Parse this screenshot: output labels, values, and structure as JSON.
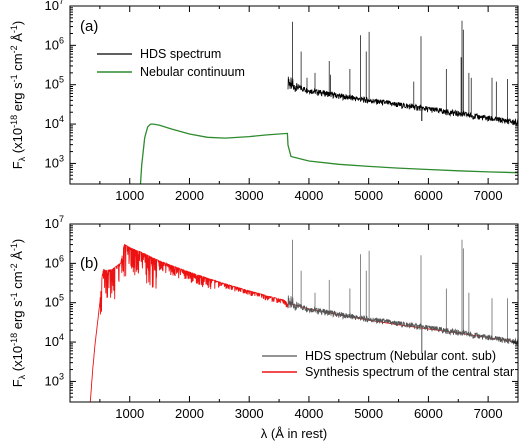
{
  "chart_data": [
    {
      "type": "line",
      "panel_label": "(a)",
      "ylabel": "F_λ (x10^-18 erg s^-1 cm^-2 Å^-1)",
      "ylabel_parts": {
        "main": "F",
        "sub": "λ",
        "a": " (x10",
        "e1": "-18",
        "b": " erg s",
        "e2": "-1",
        "c": " cm",
        "e3": "-2",
        "d": " Å",
        "e4": "-1",
        "e": ")"
      },
      "xlim": [
        0,
        7500
      ],
      "ylim": [
        300,
        10000000
      ],
      "yscale": "log",
      "x_ticks": [
        "1000",
        "2000",
        "3000",
        "4000",
        "5000",
        "6000",
        "7000"
      ],
      "x_tick_values": [
        1000,
        2000,
        3000,
        4000,
        5000,
        6000,
        7000
      ],
      "y_ticks": [
        {
          "value": 1000,
          "base": "10",
          "exp": "3"
        },
        {
          "value": 10000,
          "base": "10",
          "exp": "4"
        },
        {
          "value": 100000,
          "base": "10",
          "exp": "5"
        },
        {
          "value": 1000000,
          "base": "10",
          "exp": "6"
        },
        {
          "value": 10000000,
          "base": "10",
          "exp": "7"
        }
      ],
      "legend": {
        "position": "top-left"
      },
      "series": [
        {
          "name": "HDS spectrum",
          "color": "#000000",
          "continuum": {
            "x": [
              3650,
              4000,
              4500,
              5000,
              5500,
              6000,
              6500,
              7000,
              7500
            ],
            "y": [
              100000,
              72000,
              52000,
              40000,
              31000,
              24000,
              18500,
              14000,
              11000
            ]
          },
          "emission_lines": [
            {
              "x": 3727,
              "y": 4000000
            },
            {
              "x": 3869,
              "y": 700000
            },
            {
              "x": 3968,
              "y": 150000
            },
            {
              "x": 4101,
              "y": 200000
            },
            {
              "x": 4340,
              "y": 400000
            },
            {
              "x": 4363,
              "y": 180000
            },
            {
              "x": 4686,
              "y": 250000
            },
            {
              "x": 4861,
              "y": 1800000
            },
            {
              "x": 4959,
              "y": 700000
            },
            {
              "x": 5007,
              "y": 2200000
            },
            {
              "x": 5755,
              "y": 120000
            },
            {
              "x": 5876,
              "y": 1700000
            },
            {
              "x": 6300,
              "y": 250000
            },
            {
              "x": 6548,
              "y": 500000
            },
            {
              "x": 6563,
              "y": 4200000
            },
            {
              "x": 6584,
              "y": 2500000
            },
            {
              "x": 6678,
              "y": 200000
            },
            {
              "x": 6716,
              "y": 150000
            },
            {
              "x": 7065,
              "y": 150000
            },
            {
              "x": 7136,
              "y": 120000
            },
            {
              "x": 7325,
              "y": 140000
            }
          ],
          "absorption_lines": [
            {
              "x": 5890,
              "y": 12000
            }
          ]
        },
        {
          "name": "Nebular continuum",
          "color": "#2e8b2e",
          "x": [
            1180,
            1200,
            1250,
            1300,
            1350,
            1400,
            1500,
            1700,
            2000,
            2300,
            2600,
            3000,
            3300,
            3640,
            3650,
            3700,
            4000,
            4500,
            5000,
            5500,
            6000,
            6500,
            7000,
            7500
          ],
          "y": [
            300,
            900,
            4500,
            8500,
            10000,
            10000,
            9300,
            7500,
            5600,
            4600,
            4400,
            4800,
            5300,
            5800,
            2900,
            1500,
            1150,
            950,
            840,
            760,
            700,
            650,
            610,
            580
          ]
        }
      ]
    },
    {
      "type": "line",
      "panel_label": "(b)",
      "ylabel": "F_λ (x10^-18 erg s^-1 cm^-2 Å^-1)",
      "ylabel_parts": {
        "main": "F",
        "sub": "λ",
        "a": " (x10",
        "e1": "-18",
        "b": " erg s",
        "e2": "-1",
        "c": " cm",
        "e3": "-2",
        "d": " Å",
        "e4": "-1",
        "e": ")"
      },
      "xlabel": "λ (Å in rest)",
      "xlim": [
        0,
        7500
      ],
      "ylim": [
        300,
        10000000
      ],
      "yscale": "log",
      "x_ticks": [
        "1000",
        "2000",
        "3000",
        "4000",
        "5000",
        "6000",
        "7000"
      ],
      "x_tick_values": [
        1000,
        2000,
        3000,
        4000,
        5000,
        6000,
        7000
      ],
      "y_ticks": [
        {
          "value": 1000,
          "base": "10",
          "exp": "3"
        },
        {
          "value": 10000,
          "base": "10",
          "exp": "4"
        },
        {
          "value": 100000,
          "base": "10",
          "exp": "5"
        },
        {
          "value": 1000000,
          "base": "10",
          "exp": "6"
        },
        {
          "value": 10000000,
          "base": "10",
          "exp": "7"
        }
      ],
      "legend": {
        "position": "bottom-center"
      },
      "series": [
        {
          "name": "HDS spectrum (Nebular cont. sub)",
          "color": "#555555",
          "continuum": {
            "x": [
              3650,
              4000,
              4500,
              5000,
              5500,
              6000,
              6500,
              7000,
              7500
            ],
            "y": [
              95000,
              70000,
              50000,
              38000,
              29500,
              23000,
              17500,
              13000,
              10000
            ]
          },
          "emission_lines": [
            {
              "x": 3727,
              "y": 4000000
            },
            {
              "x": 3869,
              "y": 650000
            },
            {
              "x": 4101,
              "y": 180000
            },
            {
              "x": 4340,
              "y": 380000
            },
            {
              "x": 4686,
              "y": 230000
            },
            {
              "x": 4861,
              "y": 1700000
            },
            {
              "x": 4959,
              "y": 650000
            },
            {
              "x": 5007,
              "y": 2100000
            },
            {
              "x": 5876,
              "y": 1600000
            },
            {
              "x": 6300,
              "y": 230000
            },
            {
              "x": 6563,
              "y": 4000000
            },
            {
              "x": 6584,
              "y": 2400000
            },
            {
              "x": 6678,
              "y": 180000
            },
            {
              "x": 7065,
              "y": 130000
            },
            {
              "x": 7325,
              "y": 130000
            }
          ],
          "absorption_lines": [
            {
              "x": 5890,
              "y": 5000
            }
          ]
        },
        {
          "name": "Synthesis spectrum of the central star",
          "color": "#ee1111",
          "x": [
            340,
            380,
            420,
            460,
            500,
            540,
            560,
            600,
            700,
            780,
            800,
            850,
            900,
            912,
            950,
            1000,
            1100,
            1200,
            1300,
            1500,
            1700,
            2000,
            2300,
            2600,
            3000,
            3300,
            3600,
            3648,
            3660,
            3800,
            4000,
            4500,
            5000,
            5500,
            6000,
            6500,
            7000,
            7500
          ],
          "y": [
            300,
            2000,
            9000,
            30000,
            100000,
            500000,
            700000,
            650000,
            700000,
            850000,
            900000,
            1000000,
            2800000,
            3000000,
            2800000,
            2500000,
            2200000,
            1900000,
            1600000,
            1150000,
            880000,
            600000,
            420000,
            300000,
            200000,
            150000,
            115000,
            85000,
            100000,
            85000,
            70000,
            49000,
            36000,
            27500,
            21500,
            17000,
            13000,
            10000
          ]
        }
      ]
    }
  ]
}
